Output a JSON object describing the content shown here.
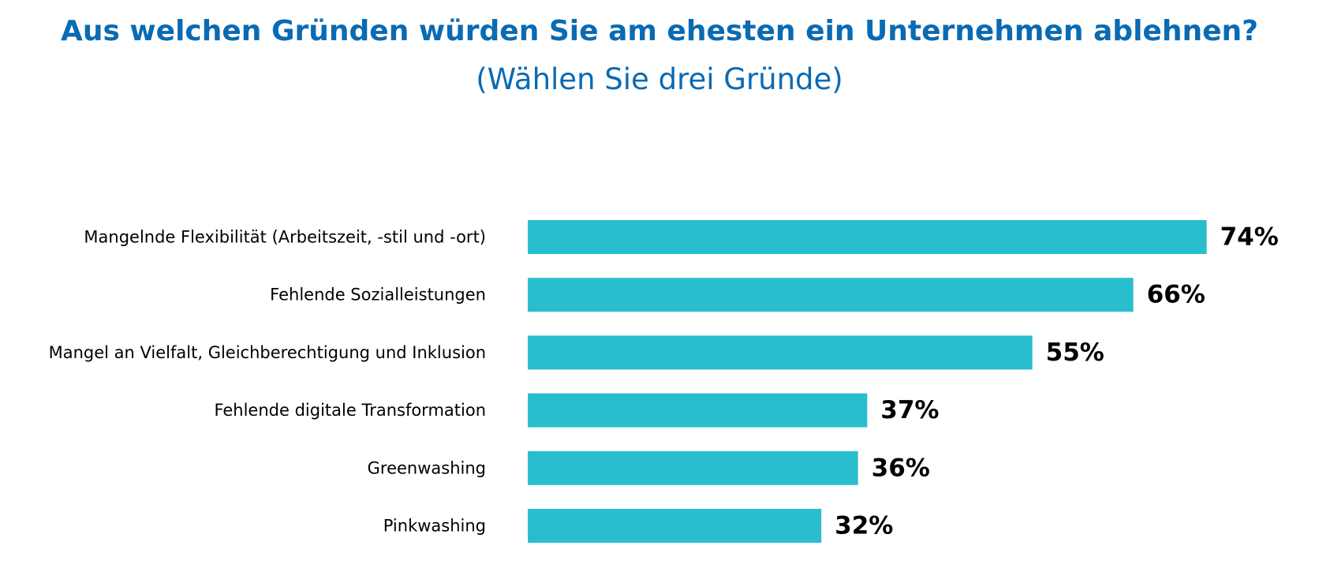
{
  "chart_data": {
    "type": "bar",
    "orientation": "horizontal",
    "title": "Aus welchen Gründen würden Sie am ehesten ein Unternehmen ablehnen?",
    "subtitle": "(Wählen Sie drei Gründe)",
    "categories": [
      "Mangelnde Flexibilität (Arbeitszeit, -stil und -ort)",
      "Fehlende Sozialleistungen",
      "Mangel an Vielfalt, Gleichberechtigung und Inklusion",
      "Fehlende digitale Transformation",
      "Greenwashing",
      "Pinkwashing"
    ],
    "values": [
      74,
      66,
      55,
      37,
      36,
      32
    ],
    "value_labels": [
      "74%",
      "66%",
      "55%",
      "37%",
      "36%",
      "32%"
    ],
    "xlim": [
      0,
      100
    ],
    "grid": false,
    "legend": "none",
    "bar_color": "#29bece",
    "title_color": "#0a6ab3"
  }
}
